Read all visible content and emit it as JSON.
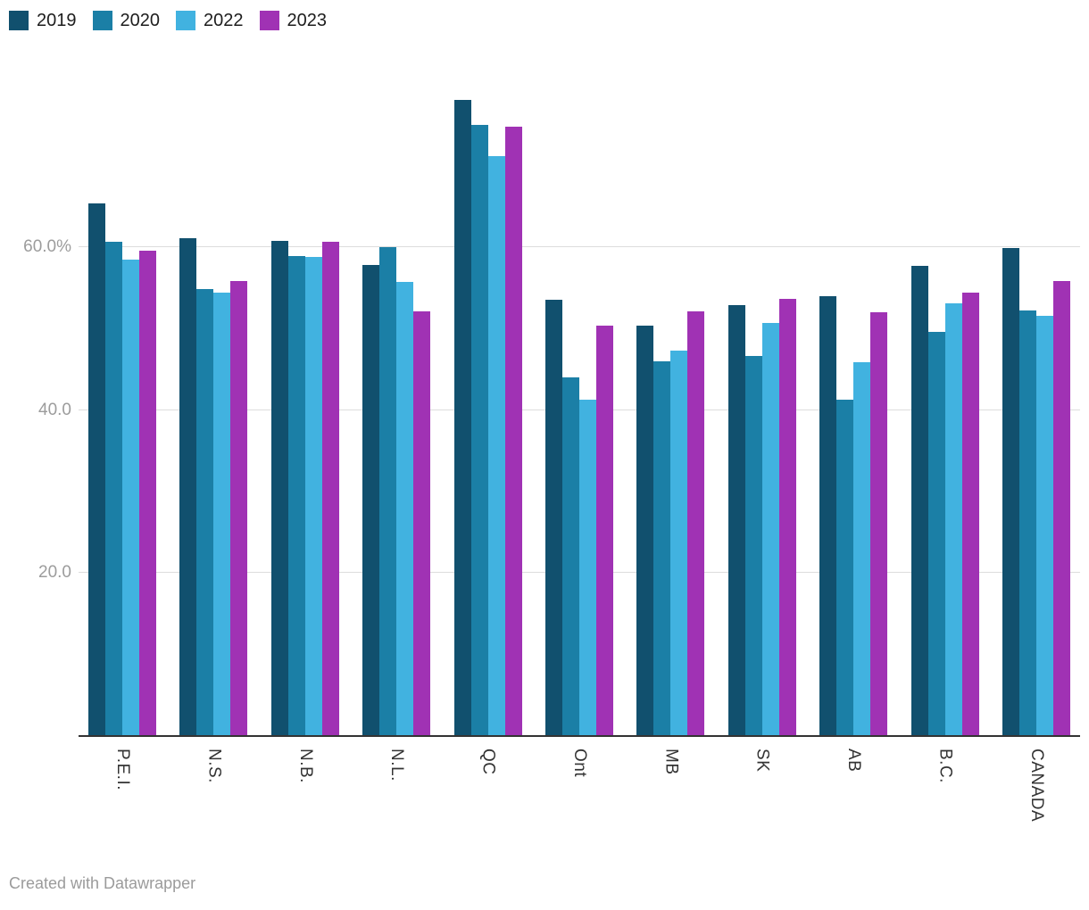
{
  "chart_data": {
    "type": "bar",
    "title": "",
    "xlabel": "",
    "ylabel": "",
    "categories": [
      "P.E.I.",
      "N.S.",
      "N.B.",
      "N.L.",
      "QC",
      "Ont",
      "MB",
      "SK",
      "AB",
      "B.C.",
      "CANADA"
    ],
    "series": [
      {
        "name": "2019",
        "color": "#11506e",
        "values": [
          65.4,
          61.1,
          60.8,
          57.8,
          78.1,
          53.6,
          50.4,
          52.9,
          54.0,
          57.7,
          59.9
        ]
      },
      {
        "name": "2020",
        "color": "#1b7fa6",
        "values": [
          60.7,
          54.9,
          58.9,
          60.0,
          75.1,
          44.0,
          46.0,
          46.6,
          41.3,
          49.6,
          52.2
        ]
      },
      {
        "name": "2022",
        "color": "#41b2e0",
        "values": [
          58.5,
          54.4,
          58.8,
          55.8,
          71.2,
          41.3,
          47.3,
          50.7,
          45.9,
          53.1,
          51.6
        ]
      },
      {
        "name": "2023",
        "color": "#a032b4",
        "values": [
          59.6,
          55.9,
          60.7,
          52.1,
          74.9,
          50.4,
          52.1,
          53.7,
          52.0,
          54.4,
          55.9
        ]
      }
    ],
    "y_axis": {
      "ylim": [
        0,
        81
      ],
      "grid": true,
      "ticks": [
        {
          "value": 20,
          "label": "20.0"
        },
        {
          "value": 40,
          "label": "40.0"
        },
        {
          "value": 60,
          "label": "60.0%"
        }
      ]
    },
    "legend": {
      "position": "top-left",
      "entries": [
        "2019",
        "2020",
        "2022",
        "2023"
      ]
    },
    "footer": "Created with Datawrapper"
  },
  "styles": {
    "axis_label_color": "#9c9c9c",
    "category_label_color": "#333333",
    "gridline_color": "#dddddd",
    "baseline_color": "#333333"
  }
}
